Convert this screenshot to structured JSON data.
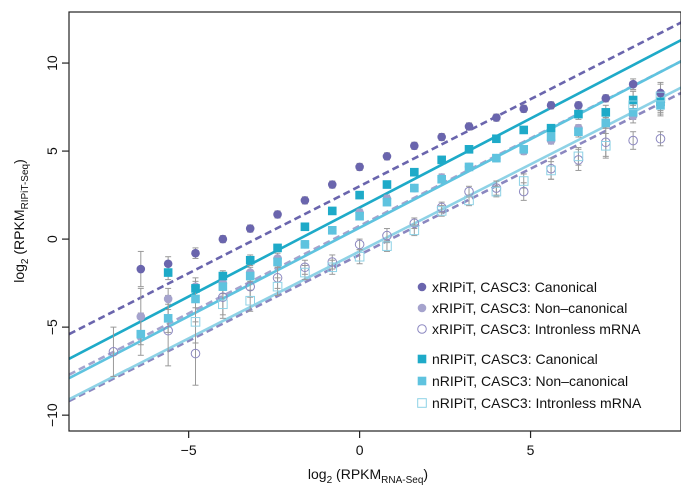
{
  "chart_data": {
    "type": "scatter",
    "xlabel": {
      "prefix": "log",
      "base": "2",
      "open": " (RPKM",
      "sub": "RNA-Seq",
      "close": ")"
    },
    "ylabel": {
      "prefix": "log",
      "base": "2",
      "open": " (RPKM",
      "sub": "RIPiT-Seq",
      "close": ")"
    },
    "xlim": [
      -8.5,
      9.4
    ],
    "ylim": [
      -10.9,
      12.9
    ],
    "xticks": [
      -5,
      0,
      5
    ],
    "yticks": [
      -10,
      -5,
      0,
      5,
      10
    ],
    "tick_labels": {
      "x": [
        "−5",
        "0",
        "5"
      ],
      "y": [
        "−10",
        "−5",
        "0",
        "5",
        "10"
      ]
    },
    "grid": false,
    "legend_position": "bottom-right",
    "series": [
      {
        "name": "xRIPiT, CASC3: Canonical",
        "color": "#6a65ad",
        "marker": "filled-circle",
        "points": [
          [
            -6.4,
            -1.7
          ],
          [
            -5.6,
            -1.4
          ],
          [
            -4.8,
            -0.8
          ],
          [
            -4.0,
            0.0
          ],
          [
            -3.2,
            0.6
          ],
          [
            -2.4,
            1.4
          ],
          [
            -1.6,
            2.2
          ],
          [
            -0.8,
            3.1
          ],
          [
            0.0,
            4.1
          ],
          [
            0.8,
            4.7
          ],
          [
            1.6,
            5.3
          ],
          [
            2.4,
            5.8
          ],
          [
            3.2,
            6.4
          ],
          [
            4.0,
            6.9
          ],
          [
            4.8,
            7.4
          ],
          [
            5.6,
            7.6
          ],
          [
            6.4,
            7.6
          ],
          [
            7.2,
            8.0
          ],
          [
            8.0,
            8.8
          ],
          [
            8.8,
            8.3
          ]
        ],
        "errors": [
          1.0,
          0.4,
          0.3,
          0.2,
          0.2,
          0.2,
          0.2,
          0.2,
          0.2,
          0.2,
          0.2,
          0.2,
          0.2,
          0.2,
          0.2,
          0.2,
          0.2,
          0.2,
          0.3,
          0.5
        ],
        "fit_line": {
          "style": "dashed",
          "x": [
            -8.5,
            9.4
          ],
          "y": [
            -5.4,
            12.3
          ]
        }
      },
      {
        "name": "xRIPiT, CASC3: Non–canonical",
        "color": "#a5a3cd",
        "marker": "filled-circle",
        "points": [
          [
            -6.4,
            -4.4
          ],
          [
            -5.6,
            -3.4
          ],
          [
            -4.8,
            -2.7
          ],
          [
            -4.0,
            -2.5
          ],
          [
            -3.2,
            -1.9
          ],
          [
            -2.4,
            -1.1
          ],
          [
            -1.6,
            -0.3
          ],
          [
            -0.8,
            0.5
          ],
          [
            0.0,
            1.5
          ],
          [
            0.8,
            2.3
          ],
          [
            1.6,
            2.9
          ],
          [
            2.4,
            3.5
          ],
          [
            3.2,
            4.1
          ],
          [
            4.0,
            4.6
          ],
          [
            4.8,
            5.0
          ],
          [
            5.6,
            5.6
          ],
          [
            6.4,
            6.3
          ],
          [
            7.2,
            6.6
          ],
          [
            8.0,
            7.0
          ],
          [
            8.8,
            7.6
          ]
        ],
        "errors": [
          1.6,
          0.6,
          0.5,
          0.4,
          0.3,
          0.3,
          0.2,
          0.2,
          0.2,
          0.2,
          0.2,
          0.2,
          0.2,
          0.2,
          0.2,
          0.2,
          0.2,
          0.3,
          0.4,
          0.6
        ],
        "fit_line": {
          "style": "dashed",
          "x": [
            -8.5,
            9.4
          ],
          "y": [
            -7.7,
            10.1
          ]
        }
      },
      {
        "name": "xRIPiT, CASC3: Intronless mRNA",
        "color": "#8b87c0",
        "marker": "open-circle",
        "points": [
          [
            -7.2,
            -6.4
          ],
          [
            -5.6,
            -5.2
          ],
          [
            -4.8,
            -6.5
          ],
          [
            -4.0,
            -3.3
          ],
          [
            -3.2,
            -2.7
          ],
          [
            -2.4,
            -2.2
          ],
          [
            -1.6,
            -1.6
          ],
          [
            -0.8,
            -1.3
          ],
          [
            0.0,
            -0.3
          ],
          [
            0.8,
            0.2
          ],
          [
            1.6,
            0.9
          ],
          [
            2.4,
            1.8
          ],
          [
            3.2,
            2.7
          ],
          [
            4.0,
            2.9
          ],
          [
            4.8,
            2.7
          ],
          [
            5.6,
            4.0
          ],
          [
            6.4,
            4.5
          ],
          [
            7.2,
            5.5
          ],
          [
            8.0,
            5.6
          ],
          [
            8.8,
            5.7
          ]
        ],
        "errors": [
          1.4,
          2.0,
          1.8,
          1.0,
          0.6,
          0.6,
          0.4,
          0.4,
          0.3,
          0.4,
          0.3,
          0.3,
          0.3,
          0.4,
          0.5,
          0.6,
          0.6,
          0.8,
          0.5,
          0.4
        ],
        "fit_line": {
          "style": "dashed",
          "x": [
            -8.5,
            9.4
          ],
          "y": [
            -9.2,
            8.3
          ]
        }
      },
      {
        "name": "nRIPiT, CASC3: Canonical",
        "color": "#1eaac8",
        "marker": "filled-square",
        "points": [
          [
            -5.6,
            -1.9
          ],
          [
            -4.8,
            -2.8
          ],
          [
            -4.0,
            -2.1
          ],
          [
            -3.2,
            -1.2
          ],
          [
            -2.4,
            -0.5
          ],
          [
            -1.6,
            0.7
          ],
          [
            -0.8,
            1.6
          ],
          [
            0.0,
            2.5
          ],
          [
            0.8,
            3.1
          ],
          [
            1.6,
            3.8
          ],
          [
            2.4,
            4.5
          ],
          [
            3.2,
            5.1
          ],
          [
            4.0,
            5.7
          ],
          [
            4.8,
            6.2
          ],
          [
            5.6,
            6.3
          ],
          [
            6.4,
            7.1
          ],
          [
            7.2,
            7.2
          ],
          [
            8.0,
            7.9
          ],
          [
            8.8,
            7.8
          ]
        ],
        "errors": [
          0.4,
          0.4,
          0.3,
          0.3,
          0.2,
          0.2,
          0.2,
          0.2,
          0.2,
          0.2,
          0.2,
          0.2,
          0.2,
          0.2,
          0.2,
          0.3,
          0.4,
          0.5,
          0.6
        ],
        "fit_line": {
          "style": "solid",
          "x": [
            -8.5,
            9.4
          ],
          "y": [
            -6.8,
            11.3
          ]
        }
      },
      {
        "name": "nRIPiT, CASC3: Non–canonical",
        "color": "#5fc3df",
        "marker": "filled-square",
        "points": [
          [
            -6.4,
            -5.4
          ],
          [
            -5.6,
            -4.5
          ],
          [
            -4.8,
            -3.4
          ],
          [
            -4.0,
            -2.7
          ],
          [
            -3.2,
            -2.1
          ],
          [
            -2.4,
            -1.3
          ],
          [
            -1.6,
            -0.3
          ],
          [
            -0.8,
            0.5
          ],
          [
            0.0,
            1.3
          ],
          [
            0.8,
            2.1
          ],
          [
            1.6,
            2.9
          ],
          [
            2.4,
            3.4
          ],
          [
            3.2,
            4.1
          ],
          [
            4.0,
            4.6
          ],
          [
            4.8,
            5.1
          ],
          [
            5.6,
            5.8
          ],
          [
            6.4,
            6.1
          ],
          [
            7.2,
            6.6
          ],
          [
            8.0,
            7.2
          ],
          [
            8.8,
            7.6
          ]
        ],
        "errors": [
          1.2,
          0.8,
          0.5,
          0.4,
          0.3,
          0.3,
          0.2,
          0.2,
          0.2,
          0.2,
          0.2,
          0.2,
          0.2,
          0.2,
          0.2,
          0.2,
          0.3,
          0.3,
          0.4,
          0.5
        ],
        "fit_line": {
          "style": "solid",
          "x": [
            -8.5,
            9.4
          ],
          "y": [
            -7.9,
            10.1
          ]
        }
      },
      {
        "name": "nRIPiT, CASC3: Intronless mRNA",
        "color": "#8ed2e6",
        "marker": "open-square",
        "points": [
          [
            -4.8,
            -4.7
          ],
          [
            -4.0,
            -3.7
          ],
          [
            -3.2,
            -3.5
          ],
          [
            -2.4,
            -2.7
          ],
          [
            -1.6,
            -1.9
          ],
          [
            -0.8,
            -1.6
          ],
          [
            0.0,
            -1.0
          ],
          [
            0.8,
            -0.4
          ],
          [
            1.6,
            0.5
          ],
          [
            2.4,
            1.6
          ],
          [
            3.2,
            2.2
          ],
          [
            4.0,
            2.7
          ],
          [
            4.8,
            3.3
          ],
          [
            5.6,
            3.9
          ],
          [
            6.4,
            4.7
          ],
          [
            7.2,
            5.3
          ],
          [
            8.0,
            7.6
          ],
          [
            8.8,
            8.1
          ]
        ],
        "errors": [
          1.2,
          0.8,
          0.6,
          0.5,
          0.4,
          0.4,
          0.4,
          0.3,
          0.3,
          0.3,
          0.3,
          0.3,
          0.4,
          0.5,
          0.5,
          0.7,
          0.8,
          0.8
        ],
        "fit_line": {
          "style": "solid",
          "x": [
            -8.5,
            9.4
          ],
          "y": [
            -9.1,
            8.6
          ]
        }
      }
    ]
  }
}
